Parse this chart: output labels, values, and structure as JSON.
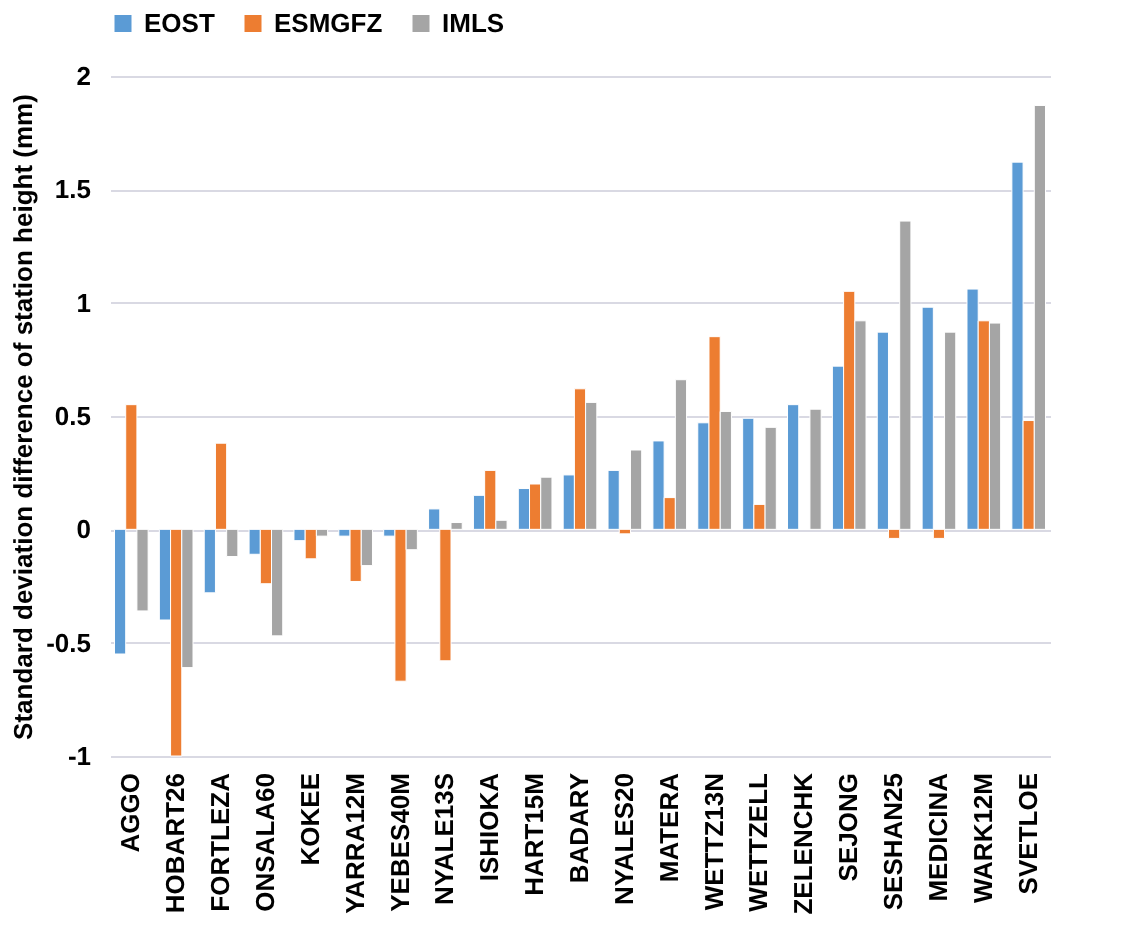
{
  "chart_data": {
    "type": "bar",
    "ylabel": "Standard deviation difference of station height (mm)",
    "categories": [
      "AGGO",
      "HOBART26",
      "FORTLEZA",
      "ONSALA60",
      "KOKEE",
      "YARRA12M",
      "YEBES40M",
      "NYALE13S",
      "ISHIOKA",
      "HART15M",
      "BADARY",
      "NYALES20",
      "MATERA",
      "WETTZ13N",
      "WETTZELL",
      "ZELENCHK",
      "SEJONG",
      "SESHAN25",
      "MEDICINA",
      "WARK12M",
      "SVETLOE"
    ],
    "series": [
      {
        "name": "EOST",
        "color": "#5b9bd5",
        "values": [
          -0.55,
          -0.4,
          -0.28,
          -0.11,
          -0.05,
          -0.03,
          -0.03,
          0.09,
          0.15,
          0.18,
          0.24,
          0.26,
          0.39,
          0.47,
          0.49,
          0.55,
          0.72,
          0.87,
          0.98,
          1.06,
          1.62
        ]
      },
      {
        "name": "ESMGFZ",
        "color": "#ed7d31",
        "values": [
          0.55,
          -1.0,
          0.38,
          -0.24,
          -0.13,
          -0.23,
          -0.67,
          -0.58,
          0.26,
          0.2,
          0.62,
          -0.02,
          0.14,
          0.85,
          0.11,
          null,
          1.05,
          -0.04,
          -0.04,
          0.92,
          0.48
        ]
      },
      {
        "name": "IMLS",
        "color": "#a5a5a5",
        "values": [
          -0.36,
          -0.61,
          -0.12,
          -0.47,
          -0.03,
          -0.16,
          -0.09,
          0.03,
          0.04,
          0.23,
          0.56,
          0.35,
          0.66,
          0.52,
          0.45,
          0.53,
          0.92,
          1.36,
          0.87,
          0.91,
          1.87
        ]
      }
    ],
    "ylim": [
      -1,
      2
    ],
    "yticks": [
      -1,
      -0.5,
      0,
      0.5,
      1,
      1.5,
      2
    ],
    "grid": "y",
    "legend": "top"
  }
}
